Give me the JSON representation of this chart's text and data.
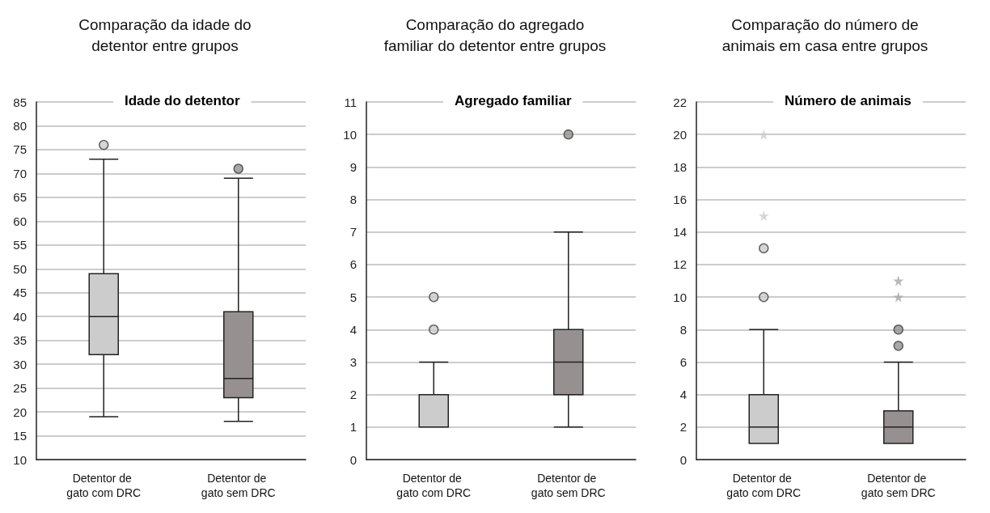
{
  "chart_data": [
    {
      "type": "box",
      "title": "Comparação da idade do\ndetentor entre grupos",
      "subtitle": "Idade do detentor",
      "categories": [
        "Detentor de gato com DRC",
        "Detentor de gato sem DRC"
      ],
      "ylim": [
        10,
        85
      ],
      "yticks": [
        10,
        15,
        20,
        25,
        30,
        35,
        40,
        45,
        50,
        55,
        60,
        65,
        70,
        75,
        80,
        85
      ],
      "grid": "y",
      "series": [
        {
          "marker": "circle",
          "colors": [
            "#cccccc",
            "#969190"
          ],
          "boxes": [
            {
              "low": 19,
              "q1": 32,
              "median": 40,
              "q3": 49,
              "high": 73,
              "outliers": [
                76
              ]
            },
            {
              "low": 18,
              "q1": 23,
              "median": 27,
              "q3": 41,
              "high": 69,
              "outliers": [
                71
              ]
            }
          ]
        }
      ]
    },
    {
      "type": "box",
      "title": "Comparação do agregado\nfamiliar do detentor entre grupos",
      "subtitle": "Agregado familiar",
      "categories": [
        "Detentor de gato com DRC",
        "Detentor de gato sem DRC"
      ],
      "ylim": [
        0,
        11
      ],
      "yticks": [
        0,
        1,
        2,
        3,
        4,
        5,
        6,
        7,
        8,
        9,
        10,
        11
      ],
      "grid": "y",
      "series": [
        {
          "marker": "circle",
          "colors": [
            "#cccccc",
            "#969190"
          ],
          "boxes": [
            {
              "low": 1,
              "q1": 1,
              "median": 1,
              "q3": 2,
              "high": 3,
              "outliers": [
                4,
                5
              ]
            },
            {
              "low": 1,
              "q1": 2,
              "median": 3,
              "q3": 4,
              "high": 7,
              "outliers": [
                10
              ]
            }
          ]
        }
      ]
    },
    {
      "type": "box",
      "title": "Comparação do número de\nanimais em casa entre grupos",
      "subtitle": "Número de animais",
      "categories": [
        "Detentor de gato com DRC",
        "Detentor de gato sem DRC"
      ],
      "ylim": [
        0,
        22
      ],
      "yticks": [
        0,
        2,
        4,
        6,
        8,
        10,
        12,
        14,
        16,
        18,
        20,
        22
      ],
      "grid": "y",
      "series": [
        {
          "marker": "circle",
          "colors": [
            "#cccccc",
            "#969190"
          ],
          "boxes": [
            {
              "low": 1,
              "q1": 1,
              "median": 2,
              "q3": 4,
              "high": 8,
              "outliers": [
                10,
                13
              ]
            },
            {
              "low": 1,
              "q1": 1,
              "median": 2,
              "q3": 3,
              "high": 6,
              "outliers": [
                7,
                8
              ]
            }
          ]
        },
        {
          "type": "scatter",
          "marker": "star",
          "x": [
            "Detentor de gato com DRC",
            "Detentor de gato com DRC",
            "Detentor de gato sem DRC",
            "Detentor de gato sem DRC"
          ],
          "values": [
            20,
            15,
            11,
            10
          ],
          "colors": [
            "#cccccc",
            "#cccccc",
            "#a8a8a8",
            "#a8a8a8"
          ]
        }
      ]
    }
  ]
}
